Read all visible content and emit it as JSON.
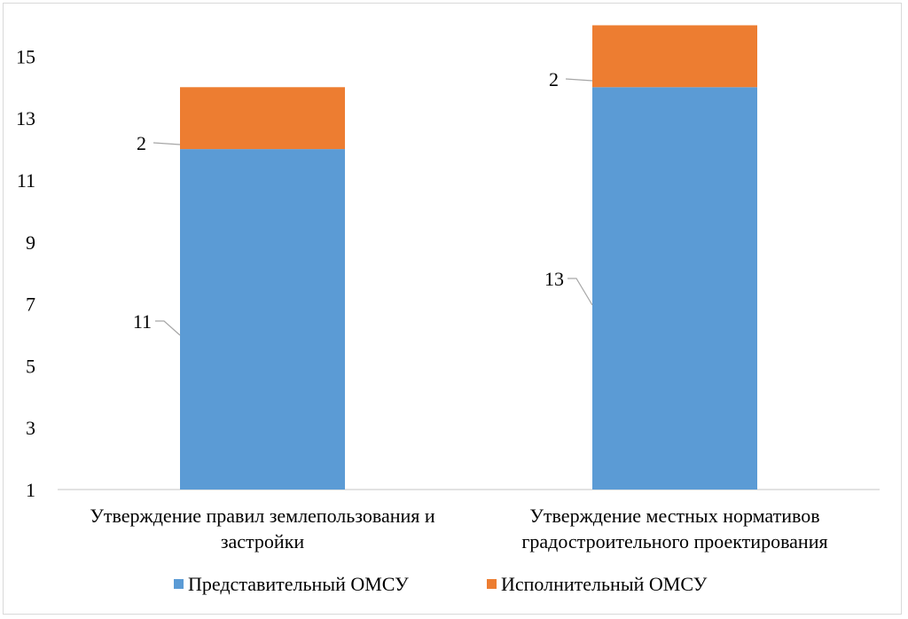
{
  "chart_data": {
    "type": "bar",
    "stacked": true,
    "categories": [
      [
        "Утверждение правил землепользования и",
        "застройки"
      ],
      [
        "Утверждение местных нормативов",
        "градостроительного проектирования"
      ]
    ],
    "series": [
      {
        "name": "Представительный ОМСУ",
        "values": [
          11,
          13
        ],
        "color": "#5b9bd5"
      },
      {
        "name": "Исполнительный ОМСУ",
        "values": [
          2,
          2
        ],
        "color": "#ed7d31"
      }
    ],
    "yticks": [
      1,
      3,
      5,
      7,
      9,
      11,
      13,
      15
    ],
    "ylim": [
      1,
      16
    ],
    "grid": false,
    "legend_position": "bottom"
  }
}
